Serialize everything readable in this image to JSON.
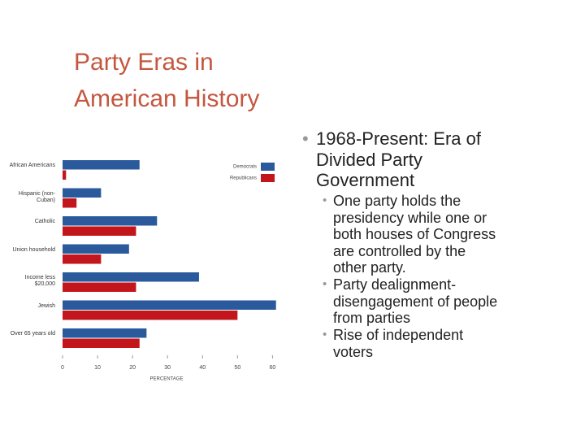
{
  "slide": {
    "title": [
      "Party Eras in",
      "American History"
    ],
    "bullets": [
      {
        "text": [
          "1968-Present: Era of",
          "Divided Party",
          "Government"
        ],
        "sub": [
          [
            "One party holds the",
            "presidency while one or",
            "both houses of Congress",
            "are controlled by the",
            "other party."
          ],
          [
            "Party dealignment-",
            "disengagement of people",
            "from parties"
          ],
          [
            "Rise of independent",
            "voters"
          ]
        ]
      }
    ]
  },
  "chart_data": {
    "type": "hbar",
    "categories": [
      "African Americans",
      "Hispanic (non-Cuban)",
      "Catholic",
      "Union household",
      "Income less $20,000",
      "Jewish",
      "Over 65 years old"
    ],
    "series": [
      {
        "name": "Democrats",
        "color": "#2a5a9c",
        "values": [
          22,
          11,
          27,
          19,
          39,
          61,
          24
        ]
      },
      {
        "name": "Republicans",
        "color": "#c3161c",
        "values": [
          1,
          4,
          21,
          11,
          21,
          50,
          22
        ]
      }
    ],
    "xlim": [
      0,
      62
    ],
    "xticks": [
      0,
      10,
      20,
      30,
      40,
      50,
      60
    ],
    "xlabel": "PERCENTAGE",
    "legend": "top-right"
  }
}
